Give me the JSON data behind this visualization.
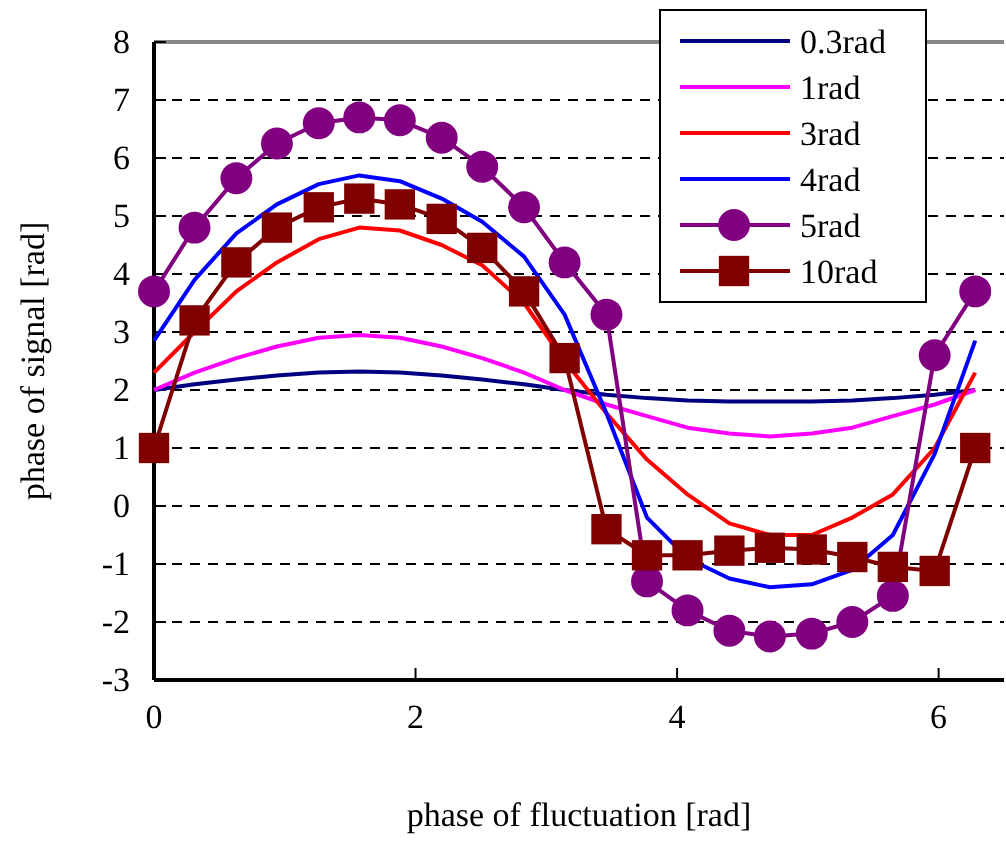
{
  "chart_data": {
    "type": "line",
    "xlabel": "phase of fluctuation [rad]",
    "ylabel": "phase of signal [rad]",
    "x": [
      0,
      0.31,
      0.63,
      0.94,
      1.26,
      1.57,
      1.88,
      2.2,
      2.51,
      2.83,
      3.14,
      3.46,
      3.77,
      4.08,
      4.4,
      4.71,
      5.03,
      5.34,
      5.65,
      5.97,
      6.28
    ],
    "xlim": [
      0,
      6.5
    ],
    "xticks": [
      0,
      2,
      4,
      6
    ],
    "ylim": [
      -3,
      8
    ],
    "yticks": [
      -3,
      -2,
      -1,
      0,
      1,
      2,
      3,
      4,
      5,
      6,
      7,
      8
    ],
    "grid": "y",
    "legend": "top right",
    "line_style": "solid",
    "series": [
      {
        "name": "0.3rad",
        "color": "#000080",
        "marker": "none",
        "values": [
          2.0,
          2.1,
          2.18,
          2.25,
          2.3,
          2.32,
          2.3,
          2.25,
          2.18,
          2.1,
          2.0,
          1.92,
          1.86,
          1.82,
          1.8,
          1.8,
          1.8,
          1.82,
          1.86,
          1.92,
          2.0
        ]
      },
      {
        "name": "1rad",
        "color": "#ff00ff",
        "marker": "none",
        "values": [
          2.0,
          2.3,
          2.55,
          2.75,
          2.9,
          2.95,
          2.9,
          2.75,
          2.55,
          2.3,
          2.0,
          1.75,
          1.55,
          1.35,
          1.25,
          1.2,
          1.25,
          1.35,
          1.55,
          1.75,
          2.0
        ]
      },
      {
        "name": "3rad",
        "color": "#ff0000",
        "marker": "none",
        "values": [
          2.3,
          3.0,
          3.7,
          4.2,
          4.6,
          4.8,
          4.75,
          4.5,
          4.15,
          3.5,
          2.5,
          1.6,
          0.8,
          0.2,
          -0.3,
          -0.5,
          -0.5,
          -0.2,
          0.2,
          1.0,
          2.3
        ]
      },
      {
        "name": "4rad",
        "color": "#0000ff",
        "marker": "none",
        "values": [
          2.85,
          3.9,
          4.7,
          5.2,
          5.55,
          5.7,
          5.6,
          5.3,
          4.9,
          4.3,
          3.3,
          1.6,
          -0.2,
          -0.9,
          -1.25,
          -1.4,
          -1.35,
          -1.1,
          -0.5,
          0.9,
          2.85
        ]
      },
      {
        "name": "5rad",
        "color": "#800080",
        "marker": "circle",
        "values": [
          3.7,
          4.8,
          5.65,
          6.25,
          6.6,
          6.7,
          6.65,
          6.35,
          5.85,
          5.15,
          4.2,
          3.3,
          -1.3,
          -1.8,
          -2.15,
          -2.25,
          -2.2,
          -2.0,
          -1.55,
          2.6,
          3.7
        ]
      },
      {
        "name": "10rad",
        "color": "#800000",
        "marker": "square",
        "values": [
          1.0,
          3.2,
          4.2,
          4.8,
          5.15,
          5.3,
          5.2,
          4.95,
          4.45,
          3.7,
          2.55,
          -0.4,
          -0.85,
          -0.85,
          -0.77,
          -0.72,
          -0.75,
          -0.88,
          -1.05,
          -1.12,
          1.0
        ]
      }
    ]
  }
}
